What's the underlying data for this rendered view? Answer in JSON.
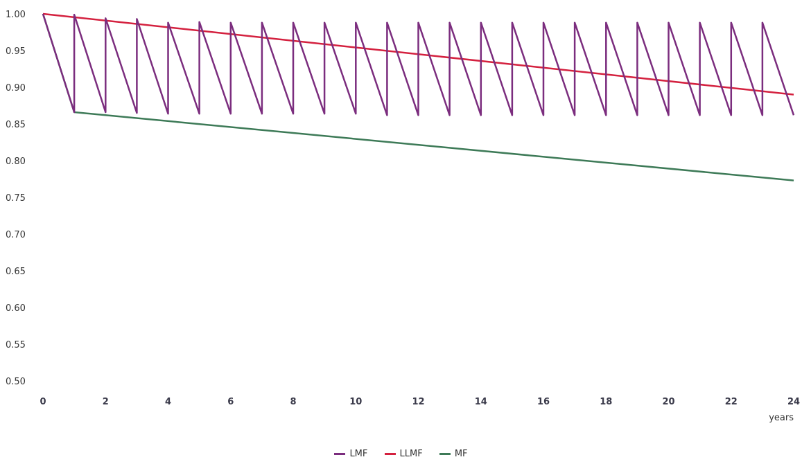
{
  "chart_data": {
    "type": "line",
    "title": "",
    "xlabel": "years",
    "ylabel": "",
    "xlim": [
      0,
      24
    ],
    "ylim": [
      0.5,
      1.0
    ],
    "x_ticks": [
      "0",
      "2",
      "4",
      "6",
      "8",
      "10",
      "12",
      "14",
      "16",
      "18",
      "20",
      "22",
      "24"
    ],
    "y_ticks": [
      "0.50",
      "0.55",
      "0.60",
      "0.65",
      "0.70",
      "0.75",
      "0.80",
      "0.85",
      "0.90",
      "0.95",
      "1.00"
    ],
    "grid": false,
    "legend_position": "bottom",
    "series": [
      {
        "name": "LMF",
        "color": "#7b2d7e",
        "points": [
          [
            0,
            1.0
          ],
          [
            1,
            0.866
          ],
          [
            1,
            0.999
          ],
          [
            2,
            0.866
          ],
          [
            2,
            0.994
          ],
          [
            3,
            0.865
          ],
          [
            3,
            0.993
          ],
          [
            4,
            0.864
          ],
          [
            4,
            0.988
          ],
          [
            5,
            0.864
          ],
          [
            5,
            0.989
          ],
          [
            6,
            0.864
          ],
          [
            6,
            0.988
          ],
          [
            7,
            0.864
          ],
          [
            7,
            0.988
          ],
          [
            8,
            0.864
          ],
          [
            8,
            0.988
          ],
          [
            9,
            0.864
          ],
          [
            9,
            0.988
          ],
          [
            10,
            0.864
          ],
          [
            10,
            0.988
          ],
          [
            11,
            0.862
          ],
          [
            11,
            0.988
          ],
          [
            12,
            0.862
          ],
          [
            12,
            0.988
          ],
          [
            13,
            0.862
          ],
          [
            13,
            0.988
          ],
          [
            14,
            0.862
          ],
          [
            14,
            0.988
          ],
          [
            15,
            0.862
          ],
          [
            15,
            0.988
          ],
          [
            16,
            0.862
          ],
          [
            16,
            0.988
          ],
          [
            17,
            0.862
          ],
          [
            17,
            0.988
          ],
          [
            18,
            0.862
          ],
          [
            18,
            0.988
          ],
          [
            19,
            0.862
          ],
          [
            19,
            0.988
          ],
          [
            20,
            0.862
          ],
          [
            20,
            0.988
          ],
          [
            21,
            0.862
          ],
          [
            21,
            0.988
          ],
          [
            22,
            0.862
          ],
          [
            22,
            0.988
          ],
          [
            23,
            0.862
          ],
          [
            23,
            0.988
          ],
          [
            24,
            0.862
          ]
        ]
      },
      {
        "name": "LLMF",
        "color": "#d4213f",
        "points": [
          [
            0,
            1.0
          ],
          [
            24,
            0.89
          ]
        ]
      },
      {
        "name": "MF",
        "color": "#3d7a57",
        "points": [
          [
            0,
            1.0
          ],
          [
            1,
            0.866
          ],
          [
            24,
            0.773
          ]
        ]
      }
    ]
  },
  "legend": {
    "items": [
      {
        "label": "LMF",
        "color": "#7b2d7e"
      },
      {
        "label": "LLMF",
        "color": "#d4213f"
      },
      {
        "label": "MF",
        "color": "#3d7a57"
      }
    ]
  }
}
